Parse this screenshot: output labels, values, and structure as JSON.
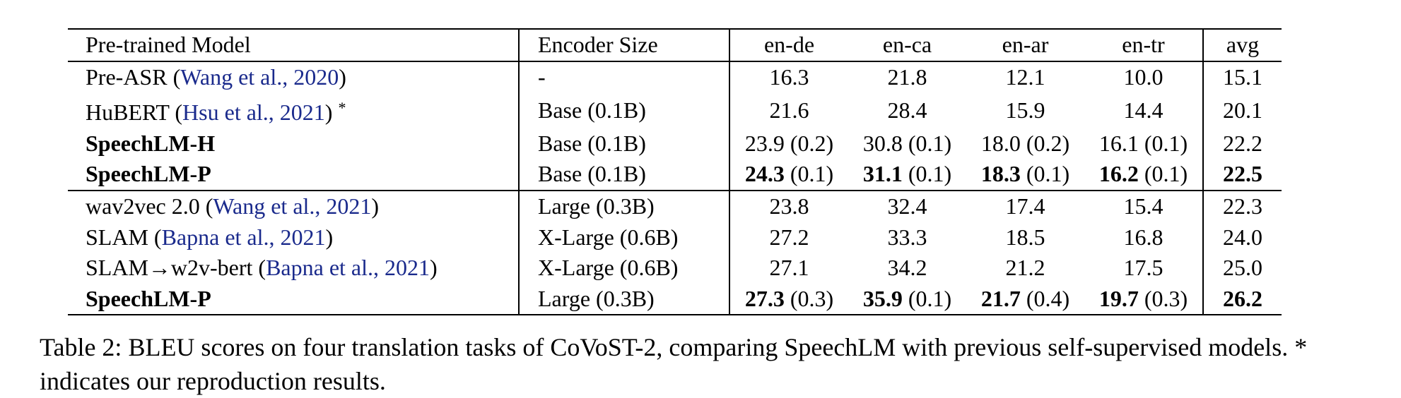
{
  "headers": {
    "model": "Pre-trained Model",
    "encoder": "Encoder Size",
    "langs": [
      "en-de",
      "en-ca",
      "en-ar",
      "en-tr"
    ],
    "avg": "avg"
  },
  "rows": [
    {
      "name": "Pre-ASR",
      "cite": "Wang et al., 2020",
      "note": "",
      "bold": false,
      "encoder": "-",
      "scores": [
        {
          "v": "16.3",
          "sd": "",
          "b": false
        },
        {
          "v": "21.8",
          "sd": "",
          "b": false
        },
        {
          "v": "12.1",
          "sd": "",
          "b": false
        },
        {
          "v": "10.0",
          "sd": "",
          "b": false
        }
      ],
      "avg": {
        "v": "15.1",
        "b": false
      }
    },
    {
      "name": "HuBERT",
      "cite": "Hsu et al., 2021",
      "note": "*",
      "bold": false,
      "encoder": "Base (0.1B)",
      "scores": [
        {
          "v": "21.6",
          "sd": "",
          "b": false
        },
        {
          "v": "28.4",
          "sd": "",
          "b": false
        },
        {
          "v": "15.9",
          "sd": "",
          "b": false
        },
        {
          "v": "14.4",
          "sd": "",
          "b": false
        }
      ],
      "avg": {
        "v": "20.1",
        "b": false
      }
    },
    {
      "name": "SpeechLM-H",
      "cite": "",
      "note": "",
      "bold": true,
      "encoder": "Base (0.1B)",
      "scores": [
        {
          "v": "23.9",
          "sd": "(0.2)",
          "b": false
        },
        {
          "v": "30.8",
          "sd": "(0.1)",
          "b": false
        },
        {
          "v": "18.0",
          "sd": "(0.2)",
          "b": false
        },
        {
          "v": "16.1",
          "sd": "(0.1)",
          "b": false
        }
      ],
      "avg": {
        "v": "22.2",
        "b": false
      }
    },
    {
      "name": "SpeechLM-P",
      "cite": "",
      "note": "",
      "bold": true,
      "encoder": "Base (0.1B)",
      "scores": [
        {
          "v": "24.3",
          "sd": "(0.1)",
          "b": true
        },
        {
          "v": "31.1",
          "sd": "(0.1)",
          "b": true
        },
        {
          "v": "18.3",
          "sd": "(0.1)",
          "b": true
        },
        {
          "v": "16.2",
          "sd": "(0.1)",
          "b": true
        }
      ],
      "avg": {
        "v": "22.5",
        "b": true
      }
    },
    {
      "name": "wav2vec 2.0",
      "cite": "Wang et al., 2021",
      "note": "",
      "bold": false,
      "encoder": "Large (0.3B)",
      "group_start": true,
      "scores": [
        {
          "v": "23.8",
          "sd": "",
          "b": false
        },
        {
          "v": "32.4",
          "sd": "",
          "b": false
        },
        {
          "v": "17.4",
          "sd": "",
          "b": false
        },
        {
          "v": "15.4",
          "sd": "",
          "b": false
        }
      ],
      "avg": {
        "v": "22.3",
        "b": false
      }
    },
    {
      "name": "SLAM",
      "cite": "Bapna et al., 2021",
      "note": "",
      "bold": false,
      "encoder": "X-Large (0.6B)",
      "scores": [
        {
          "v": "27.2",
          "sd": "",
          "b": false
        },
        {
          "v": "33.3",
          "sd": "",
          "b": false
        },
        {
          "v": "18.5",
          "sd": "",
          "b": false
        },
        {
          "v": "16.8",
          "sd": "",
          "b": false
        }
      ],
      "avg": {
        "v": "24.0",
        "b": false
      }
    },
    {
      "name": "SLAM→w2v-bert",
      "cite": "Bapna et al., 2021",
      "note": "",
      "bold": false,
      "encoder": "X-Large (0.6B)",
      "scores": [
        {
          "v": "27.1",
          "sd": "",
          "b": false
        },
        {
          "v": "34.2",
          "sd": "",
          "b": false
        },
        {
          "v": "21.2",
          "sd": "",
          "b": false
        },
        {
          "v": "17.5",
          "sd": "",
          "b": false
        }
      ],
      "avg": {
        "v": "25.0",
        "b": false
      }
    },
    {
      "name": "SpeechLM-P",
      "cite": "",
      "note": "",
      "bold": true,
      "encoder": "Large (0.3B)",
      "scores": [
        {
          "v": "27.3",
          "sd": "(0.3)",
          "b": true
        },
        {
          "v": "35.9",
          "sd": "(0.1)",
          "b": true
        },
        {
          "v": "21.7",
          "sd": "(0.4)",
          "b": true
        },
        {
          "v": "19.7",
          "sd": "(0.3)",
          "b": true
        }
      ],
      "avg": {
        "v": "26.2",
        "b": true
      }
    }
  ],
  "caption": "Table 2:  BLEU scores on four translation tasks of CoVoST-2, comparing SpeechLM with previous self-supervised models. * indicates our reproduction results."
}
